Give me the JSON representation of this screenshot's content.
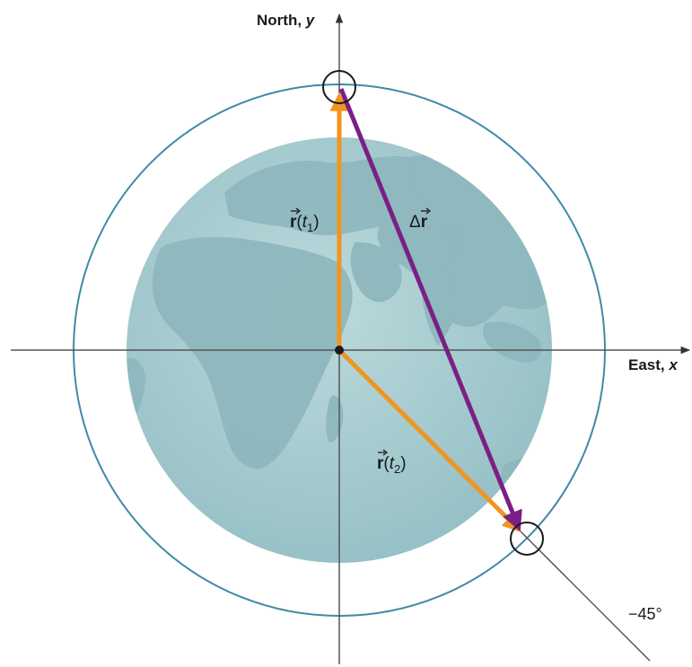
{
  "axes": {
    "y_label": "North, ",
    "y_symbol": "y",
    "x_label": "East, ",
    "x_symbol": "x"
  },
  "vectors": {
    "r1": {
      "base": "r",
      "open": "(",
      "var": "t",
      "sub": "1",
      "close": ")"
    },
    "r2": {
      "base": "r",
      "open": "(",
      "var": "t",
      "sub": "2",
      "close": ")"
    },
    "dr": {
      "delta": "Δ",
      "base": "r"
    }
  },
  "angle_label": "−45°",
  "colors": {
    "orbit": "#3f8aa6",
    "earth_ocean": "#a9cdd2",
    "earth_land": "#8fbac0",
    "position_vector": "#f0951f",
    "displacement_vector": "#7b1f86",
    "axis": "#555555",
    "marker": "#1a1a1a"
  }
}
